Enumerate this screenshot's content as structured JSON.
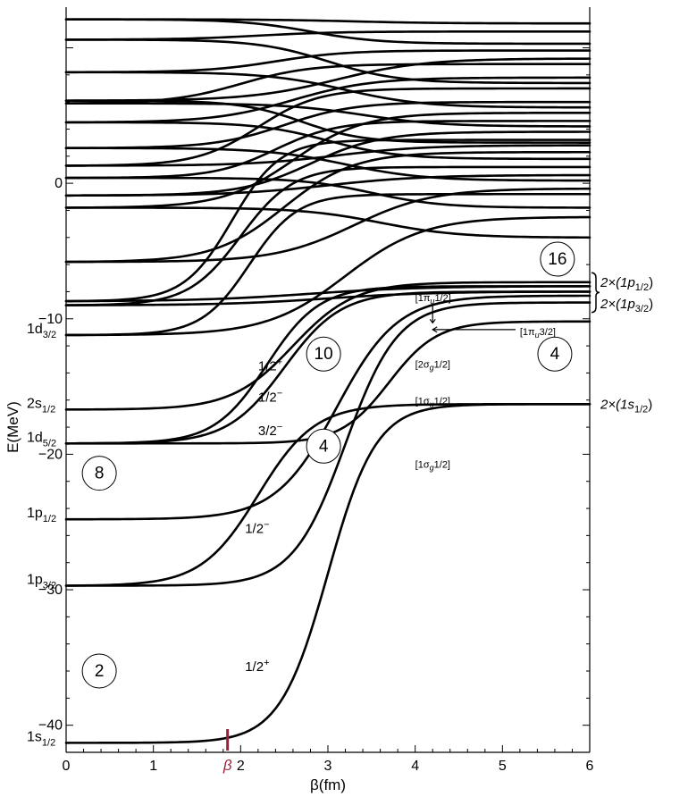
{
  "chart_data": {
    "type": "line",
    "xlabel": "β(fm)",
    "ylabel": "E(MeV)",
    "xlim": [
      0,
      6
    ],
    "ylim": [
      -42,
      13
    ],
    "x_ticks": [
      0,
      1,
      2,
      3,
      4,
      5,
      6
    ],
    "y_ticks": [
      -40,
      -30,
      -20,
      -10,
      0
    ],
    "grid": false,
    "beta_marker": {
      "x": 1.85,
      "label": "β",
      "color": "#9a1f3b"
    },
    "levels_left": [
      {
        "main": "1d",
        "sub": "3/2",
        "E": -11.2
      },
      {
        "main": "2s",
        "sub": "1/2",
        "E": -16.7
      },
      {
        "main": "1d",
        "sub": "5/2",
        "E": -19.2
      },
      {
        "main": "1p",
        "sub": "1/2",
        "E": -24.8
      },
      {
        "main": "1p",
        "sub": "3/2",
        "E": -29.7
      },
      {
        "main": "1s",
        "sub": "1/2",
        "E": -41.3
      }
    ],
    "right_labels": [
      {
        "text": "2×(1p",
        "sub": "1/2",
        "close": ")",
        "E": -7.3
      },
      {
        "text": "2×(1p",
        "sub": "3/2",
        "close": ")",
        "E": -8.9
      },
      {
        "text": "2×(1s",
        "sub": "1/2",
        "close": ")",
        "E": -16.3
      }
    ],
    "jp_labels": [
      {
        "text": "1/2",
        "sup": "+",
        "x": 2.2,
        "E": -13.8
      },
      {
        "text": "1/2",
        "sup": "−",
        "x": 2.2,
        "E": -16.1
      },
      {
        "text": "3/2",
        "sup": "−",
        "x": 2.2,
        "E": -18.6
      },
      {
        "text": "1/2",
        "sup": "−",
        "x": 2.05,
        "E": -25.8
      },
      {
        "text": "1/2",
        "sup": "+",
        "x": 2.05,
        "E": -36.0
      }
    ],
    "orbital_labels": [
      {
        "text": "[1π",
        "sub": "u",
        "tail": "1/2]",
        "x": 4.0,
        "E": -8.7
      },
      {
        "text": "[1π",
        "sub": "u",
        "tail": "3/2]",
        "x": 5.2,
        "E": -11.2
      },
      {
        "text": "[2σ",
        "sub": "g",
        "tail": "1/2]",
        "x": 4.0,
        "E": -13.6
      },
      {
        "text": "[1σ",
        "sub": "u",
        "tail": "1/2]",
        "x": 4.0,
        "E": -16.3
      },
      {
        "text": "[1σ",
        "sub": "g",
        "tail": "1/2]",
        "x": 4.0,
        "E": -21.0
      }
    ],
    "shell_counts": [
      {
        "n": "16",
        "x": 5.63,
        "E": -5.6
      },
      {
        "n": "10",
        "x": 2.95,
        "E": -12.6
      },
      {
        "n": "4",
        "x": 5.6,
        "E": -12.6
      },
      {
        "n": "4",
        "x": 2.95,
        "E": -19.4
      },
      {
        "n": "8",
        "x": 0.38,
        "E": -21.4
      },
      {
        "n": "2",
        "x": 0.38,
        "E": -36.0
      }
    ],
    "series": [
      {
        "E0": -41.3,
        "E6": -16.3,
        "x_mid": 3.0,
        "w": 0.55
      },
      {
        "E0": -29.7,
        "E6": -16.3,
        "x_mid": 2.2,
        "w": 0.65
      },
      {
        "E0": -29.7,
        "E6": -8.8,
        "x_mid": 3.2,
        "w": 0.6
      },
      {
        "E0": -24.8,
        "E6": -8.3,
        "x_mid": 3.1,
        "w": 0.7
      },
      {
        "E0": -19.2,
        "E6": -10.2,
        "x_mid": 3.7,
        "w": 0.55
      },
      {
        "E0": -19.2,
        "E6": -8.0,
        "x_mid": 2.5,
        "w": 0.65
      },
      {
        "E0": -19.2,
        "E6": -7.6,
        "x_mid": 2.3,
        "w": 0.6
      },
      {
        "E0": -16.7,
        "E6": -7.3,
        "x_mid": 2.6,
        "w": 0.7
      },
      {
        "E0": -11.2,
        "E6": -2.5,
        "x_mid": 3.2,
        "w": 0.9
      },
      {
        "E0": -11.2,
        "E6": -0.8,
        "x_mid": 2.1,
        "w": 0.55
      },
      {
        "E0": -9.0,
        "E6": -8.0,
        "x_mid": 3.0,
        "w": 1.2
      },
      {
        "E0": -9.0,
        "E6": 1.2,
        "x_mid": 2.0,
        "w": 0.6
      },
      {
        "E0": -8.7,
        "E6": 3.2,
        "x_mid": 1.9,
        "w": 0.55
      },
      {
        "E0": -8.7,
        "E6": -7.6,
        "x_mid": 2.8,
        "w": 1.3
      },
      {
        "E0": -5.8,
        "E6": 2.3,
        "x_mid": 2.5,
        "w": 0.8
      },
      {
        "E0": -5.8,
        "E6": -0.4,
        "x_mid": 3.3,
        "w": 0.9
      },
      {
        "E0": -1.8,
        "E6": 5.2,
        "x_mid": 2.6,
        "w": 0.8
      },
      {
        "E0": -1.8,
        "E6": -4.0,
        "x_mid": 3.6,
        "w": 0.9
      },
      {
        "E0": -0.9,
        "E6": 0.6,
        "x_mid": 3.0,
        "w": 1.1
      },
      {
        "E0": -0.9,
        "E6": 3.8,
        "x_mid": 2.8,
        "w": 0.8
      },
      {
        "E0": 0.4,
        "E6": 4.6,
        "x_mid": 2.4,
        "w": 0.7
      },
      {
        "E0": 0.4,
        "E6": -1.8,
        "x_mid": 3.5,
        "w": 0.8
      },
      {
        "E0": 1.3,
        "E6": 2.8,
        "x_mid": 3.1,
        "w": 1.0
      },
      {
        "E0": 1.3,
        "E6": 7.0,
        "x_mid": 2.2,
        "w": 0.7
      },
      {
        "E0": 2.6,
        "E6": 0.2,
        "x_mid": 3.2,
        "w": 0.9
      },
      {
        "E0": 2.6,
        "E6": 6.0,
        "x_mid": 2.5,
        "w": 0.8
      },
      {
        "E0": 4.5,
        "E6": 1.8,
        "x_mid": 3.0,
        "w": 0.8
      },
      {
        "E0": 4.5,
        "E6": 7.8,
        "x_mid": 2.6,
        "w": 0.9
      },
      {
        "E0": 5.9,
        "E6": 4.2,
        "x_mid": 3.4,
        "w": 0.9
      },
      {
        "E0": 5.9,
        "E6": 8.8,
        "x_mid": 2.0,
        "w": 0.8
      },
      {
        "E0": 6.1,
        "E6": 3.0,
        "x_mid": 2.7,
        "w": 0.7
      },
      {
        "E0": 6.1,
        "E6": 9.2,
        "x_mid": 3.1,
        "w": 1.0
      },
      {
        "E0": 8.2,
        "E6": 5.6,
        "x_mid": 3.2,
        "w": 0.9
      },
      {
        "E0": 8.2,
        "E6": 9.8,
        "x_mid": 2.4,
        "w": 0.8
      },
      {
        "E0": 10.6,
        "E6": 7.4,
        "x_mid": 3.0,
        "w": 0.8
      },
      {
        "E0": 10.6,
        "E6": 11.2,
        "x_mid": 2.2,
        "w": 0.9
      },
      {
        "E0": 12.1,
        "E6": 10.3,
        "x_mid": 2.8,
        "w": 0.8
      },
      {
        "E0": 12.1,
        "E6": 11.8,
        "x_mid": 3.3,
        "w": 1.0
      }
    ]
  }
}
